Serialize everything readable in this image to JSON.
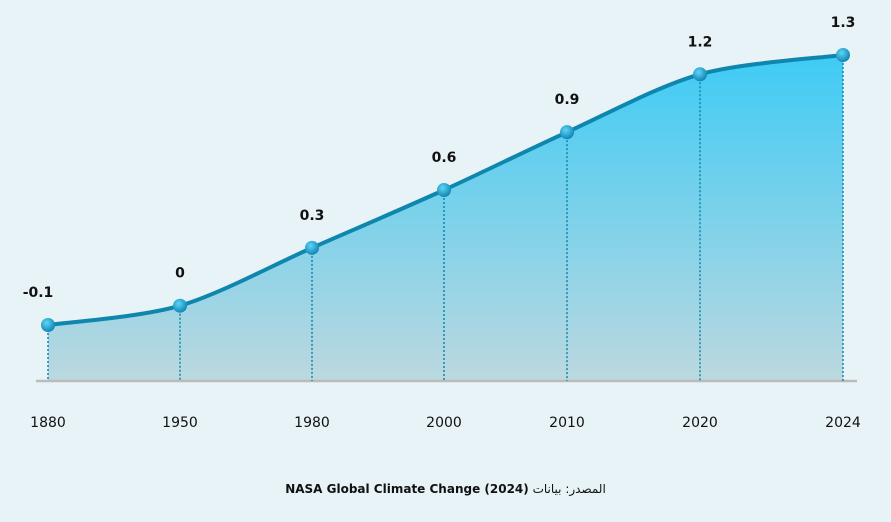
{
  "chart_data": {
    "type": "area",
    "categories": [
      "1880",
      "1950",
      "1980",
      "2000",
      "2010",
      "2020",
      "2024"
    ],
    "values": [
      -0.1,
      0,
      0.3,
      0.6,
      0.9,
      1.2,
      1.3
    ],
    "data_labels": [
      "-0.1",
      "0",
      "0.3",
      "0.6",
      "0.9",
      "1.2",
      "1.3"
    ],
    "ylim": [
      -0.1,
      1.3
    ],
    "grid": false,
    "colors": {
      "line": "#0e86ad",
      "fill_top": "#3ecbf5",
      "fill_bottom": "#bcd8df",
      "marker": "#1aa6d6",
      "baseline": "#bbbbbb"
    }
  },
  "source": {
    "prefix": "المصدر: بيانات",
    "name": "NASA Global Climate Change (2024)"
  }
}
